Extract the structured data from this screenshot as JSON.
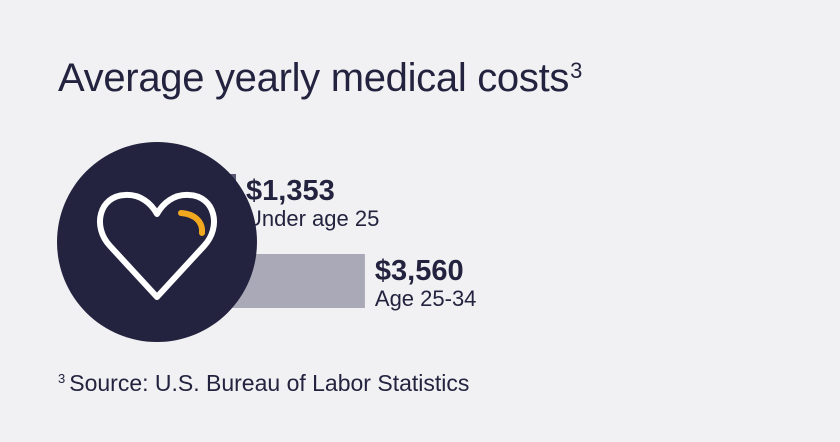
{
  "title": "Average yearly medical costs",
  "title_footnote_mark": "3",
  "footnote": {
    "mark": "3",
    "text": "Source: U.S. Bureau of Labor Statistics"
  },
  "icon": "heart-icon",
  "colors": {
    "background": "#f1f1f3",
    "navy": "#23233f",
    "bar_dark": "#5a5a74",
    "bar_light": "#a9a9b7",
    "accent": "#f2a81e",
    "heart_stroke": "#ffffff"
  },
  "chart_data": {
    "type": "bar",
    "orientation": "horizontal",
    "categories": [
      "Under age 25",
      "Age 25-34"
    ],
    "values": [
      1353,
      3560
    ],
    "value_labels": [
      "$1,353",
      "$3,560"
    ],
    "title": "Average yearly medical costs",
    "grid": false
  }
}
